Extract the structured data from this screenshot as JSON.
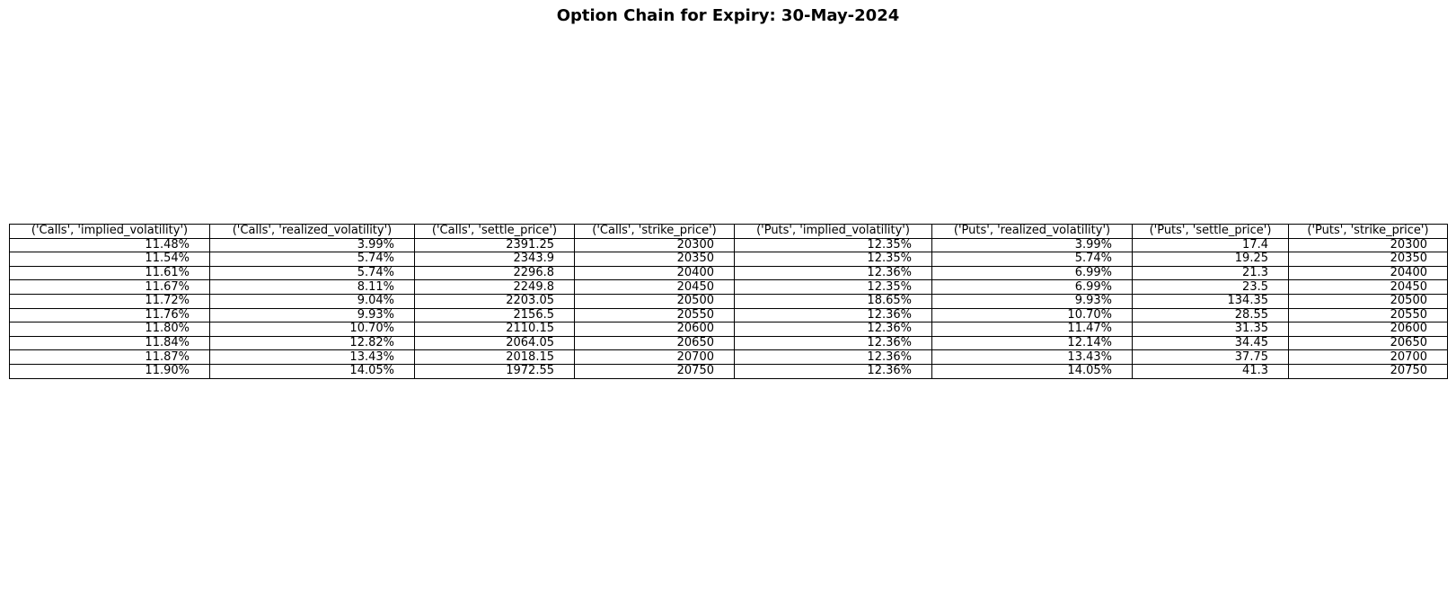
{
  "chart_data": {
    "type": "table",
    "title": "Option Chain for Expiry: 30-May-2024",
    "columns": [
      "('Calls', 'implied_volatility')",
      "('Calls', 'realized_volatility')",
      "('Calls', 'settle_price')",
      "('Calls', 'strike_price')",
      "('Puts', 'implied_volatility')",
      "('Puts', 'realized_volatility')",
      "('Puts', 'settle_price')",
      "('Puts', 'strike_price')"
    ],
    "rows": [
      [
        "11.48%",
        "3.99%",
        "2391.25",
        "20300",
        "12.35%",
        "3.99%",
        "17.4",
        "20300"
      ],
      [
        "11.54%",
        "5.74%",
        "2343.9",
        "20350",
        "12.35%",
        "5.74%",
        "19.25",
        "20350"
      ],
      [
        "11.61%",
        "5.74%",
        "2296.8",
        "20400",
        "12.36%",
        "6.99%",
        "21.3",
        "20400"
      ],
      [
        "11.67%",
        "8.11%",
        "2249.8",
        "20450",
        "12.35%",
        "6.99%",
        "23.5",
        "20450"
      ],
      [
        "11.72%",
        "9.04%",
        "2203.05",
        "20500",
        "18.65%",
        "9.93%",
        "134.35",
        "20500"
      ],
      [
        "11.76%",
        "9.93%",
        "2156.5",
        "20550",
        "12.36%",
        "10.70%",
        "28.55",
        "20550"
      ],
      [
        "11.80%",
        "10.70%",
        "2110.15",
        "20600",
        "12.36%",
        "11.47%",
        "31.35",
        "20600"
      ],
      [
        "11.84%",
        "12.82%",
        "2064.05",
        "20650",
        "12.36%",
        "12.14%",
        "34.45",
        "20650"
      ],
      [
        "11.87%",
        "13.43%",
        "2018.15",
        "20700",
        "12.36%",
        "13.43%",
        "37.75",
        "20700"
      ],
      [
        "11.90%",
        "14.05%",
        "1972.55",
        "20750",
        "12.36%",
        "14.05%",
        "41.3",
        "20750"
      ]
    ]
  }
}
